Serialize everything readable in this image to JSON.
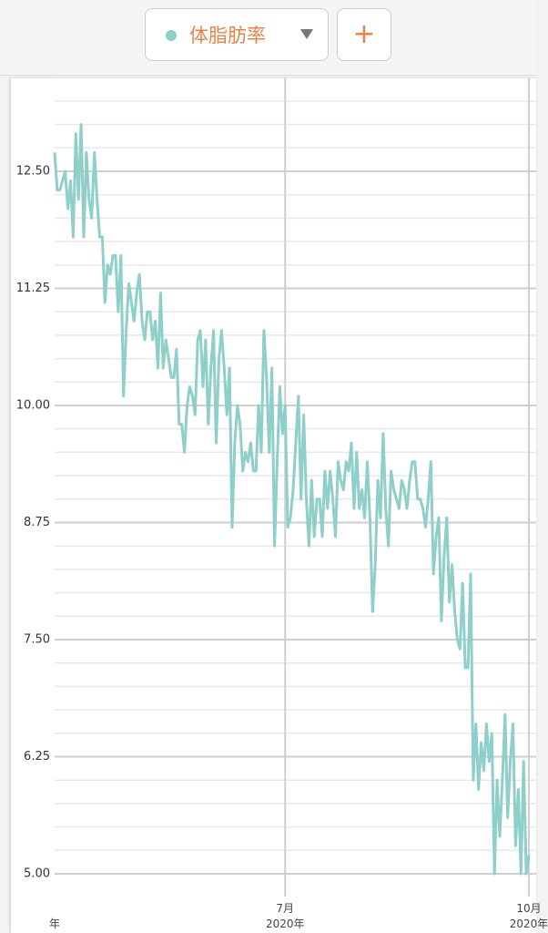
{
  "header": {
    "metric": "体脂肪率",
    "add_button": "+"
  },
  "chart_data": {
    "type": "line",
    "color": "#8ecfca",
    "ylim": [
      5,
      13.5
    ],
    "yticks": [
      {
        "value": 5,
        "label": "5.00"
      },
      {
        "value": 6.25,
        "label": "6.25"
      },
      {
        "value": 7.5,
        "label": "7.50"
      },
      {
        "value": 8.75,
        "label": "8.75"
      },
      {
        "value": 10,
        "label": "10.00"
      },
      {
        "value": 11.25,
        "label": "11.25"
      },
      {
        "value": 12.5,
        "label": "12.50"
      }
    ],
    "minor_yticks": [
      5.25,
      5.5,
      5.75,
      6.0,
      6.5,
      6.75,
      7.0,
      7.25,
      7.75,
      8.0,
      8.25,
      8.5,
      9.0,
      9.25,
      9.5,
      9.75,
      10.25,
      10.5,
      10.75,
      11.0,
      11.5,
      11.75,
      12.0,
      12.25,
      12.75,
      13.0,
      13.25,
      13.5
    ],
    "grid": true,
    "categories": [
      "年",
      null,
      null,
      null,
      null,
      null,
      null,
      null,
      null,
      null,
      null,
      null,
      null,
      null,
      null,
      null,
      null,
      null,
      null,
      null,
      null,
      null,
      null,
      null,
      null,
      null,
      null,
      null,
      null,
      null,
      null,
      null,
      null,
      null,
      null,
      null,
      null,
      null,
      null,
      null,
      null,
      null,
      null,
      null,
      null,
      null,
      null,
      null,
      null,
      null,
      null,
      null,
      null,
      null,
      null,
      null,
      null,
      null,
      null,
      null,
      null,
      null,
      null,
      null,
      null,
      null,
      null,
      null,
      null,
      null,
      null,
      null,
      null,
      null,
      null,
      null,
      null,
      null,
      null,
      null,
      null,
      null,
      null,
      null,
      null,
      null,
      null,
      "7月\n2020年",
      null,
      null,
      null,
      null,
      null,
      null,
      null,
      null,
      null,
      null,
      null,
      null,
      null,
      null,
      null,
      null,
      null,
      null,
      null,
      null,
      null,
      null,
      null,
      null,
      null,
      null,
      null,
      null,
      null,
      null,
      null,
      null,
      null,
      null,
      null,
      null,
      null,
      null,
      null,
      null,
      null,
      null,
      null,
      null,
      null,
      null,
      null,
      null,
      null,
      null,
      null,
      null,
      null,
      null,
      null,
      null,
      null,
      null,
      null,
      null,
      null,
      null,
      null,
      null,
      null,
      null,
      null,
      null,
      null,
      null,
      null,
      null,
      null,
      null,
      null,
      null,
      null,
      null,
      null,
      null,
      null,
      null,
      null,
      null,
      null,
      null,
      null,
      null,
      null,
      null,
      null,
      "10月\n2020年"
    ],
    "values": [
      12.7,
      12.3,
      12.3,
      12.4,
      12.5,
      12.1,
      12.4,
      11.8,
      12.9,
      12.2,
      13.0,
      11.8,
      12.7,
      12.2,
      12.0,
      12.7,
      12.2,
      11.8,
      11.8,
      11.1,
      11.5,
      11.4,
      11.6,
      11.6,
      11.0,
      11.6,
      10.1,
      10.8,
      11.3,
      11.1,
      10.9,
      11.2,
      11.4,
      10.9,
      10.7,
      11.0,
      11.0,
      10.7,
      10.9,
      10.4,
      11.2,
      10.4,
      10.7,
      10.5,
      10.3,
      10.3,
      10.6,
      9.8,
      9.8,
      9.5,
      10.0,
      10.2,
      10.1,
      9.9,
      10.7,
      10.8,
      10.2,
      10.7,
      9.8,
      10.4,
      10.8,
      9.6,
      10.5,
      10.8,
      10.4,
      9.9,
      10.4,
      8.7,
      9.6,
      10.0,
      9.8,
      9.3,
      9.5,
      9.4,
      9.6,
      9.3,
      9.3,
      10.0,
      9.5,
      10.8,
      10.3,
      9.5,
      10.4,
      8.5,
      9.4,
      10.2,
      9.7,
      10.0,
      8.7,
      8.8,
      9.1,
      9.6,
      10.1,
      9.0,
      9.9,
      9.0,
      8.5,
      9.2,
      8.6,
      9.0,
      9.0,
      8.6,
      9.3,
      8.9,
      9.3,
      9.0,
      8.6,
      9.4,
      9.2,
      9.1,
      9.4,
      9.3,
      9.6,
      8.9,
      9.5,
      8.9,
      9.1,
      8.8,
      9.4,
      8.8,
      7.8,
      8.3,
      9.2,
      8.8,
      9.7,
      8.9,
      8.5,
      9.3,
      9.1,
      9.0,
      8.9,
      9.2,
      9.1,
      8.9,
      9.2,
      9.4,
      9.4,
      9.0,
      9.0,
      8.9,
      8.7,
      9.0,
      9.4,
      8.2,
      8.6,
      8.8,
      7.7,
      8.4,
      8.8,
      7.9,
      8.3,
      7.8,
      7.5,
      7.4,
      8.1,
      7.2,
      7.2,
      8.2,
      6.0,
      6.6,
      5.9,
      6.4,
      6.1,
      6.6,
      6.2,
      6.5,
      5.0,
      6.0,
      5.4,
      6.0,
      6.7,
      5.6,
      6.2,
      6.6,
      5.3,
      5.9,
      5.0,
      6.2,
      5.0,
      5.2
    ]
  }
}
